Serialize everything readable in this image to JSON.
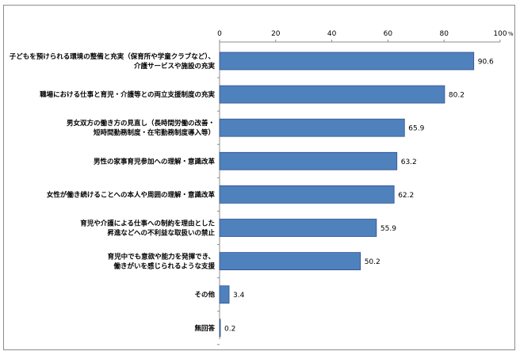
{
  "chart_data": {
    "type": "bar",
    "orientation": "horizontal",
    "unit": "%",
    "xlim": [
      0,
      100
    ],
    "ticks": [
      "0",
      "20",
      "40",
      "60",
      "80",
      "100"
    ],
    "categories": [
      [
        "子どもを預けられる環境の整備と充実（保育所や学童クラブなど）、",
        "介護サービスや施設の充実"
      ],
      [
        "職場における仕事と育児・介護等との両立支援制度の充実"
      ],
      [
        "男女双方の働き方の見直し（長時間労働の改善・",
        "短時間勤務制度・在宅勤務制度導入等）"
      ],
      [
        "男性の家事育児参加への理解・意識改革"
      ],
      [
        "女性が働き続けることへの本人や周囲の理解・意識改革"
      ],
      [
        "育児や介護による仕事への制約を理由とした",
        "昇進などへの不利益な取扱いの禁止"
      ],
      [
        "育児中でも意欲や能力を発揮でき、",
        "働きがいを感じられるような支援"
      ],
      [
        "その他"
      ],
      [
        "無回答"
      ]
    ],
    "values": [
      90.6,
      80.2,
      65.9,
      63.2,
      62.2,
      55.9,
      50.2,
      3.4,
      0.2
    ],
    "value_labels": [
      "90.6",
      "80.2",
      "65.9",
      "63.2",
      "62.2",
      "55.9",
      "50.2",
      "3.4",
      "0.2"
    ],
    "bar_color": "#4f81bd",
    "bar_edge_color": "#2f528f",
    "grid": false
  }
}
